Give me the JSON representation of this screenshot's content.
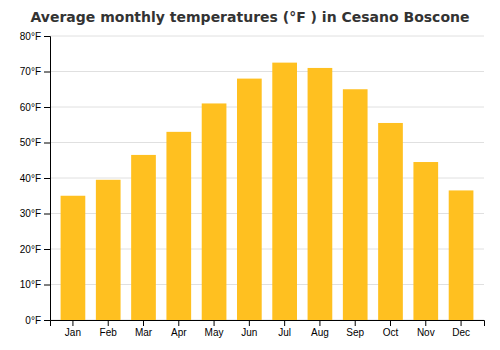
{
  "chart_data": {
    "type": "bar",
    "title": "Average monthly temperatures (°F ) in Cesano Boscone",
    "categories": [
      "Jan",
      "Feb",
      "Mar",
      "Apr",
      "May",
      "Jun",
      "Jul",
      "Aug",
      "Sep",
      "Oct",
      "Nov",
      "Dec"
    ],
    "values": [
      35,
      39.5,
      46.5,
      53,
      61,
      68,
      72.5,
      71,
      65,
      55.5,
      44.5,
      36.5
    ],
    "color": "#FFC020",
    "ylim": [
      0,
      80
    ],
    "yticks": [
      {
        "value": 0,
        "label": "0°F"
      },
      {
        "value": 10,
        "label": "10°F"
      },
      {
        "value": 20,
        "label": "20°F"
      },
      {
        "value": 30,
        "label": "30°F"
      },
      {
        "value": 40,
        "label": "40°F"
      },
      {
        "value": 50,
        "label": "50°F"
      },
      {
        "value": 60,
        "label": "60°F"
      },
      {
        "value": 70,
        "label": "70°F"
      },
      {
        "value": 80,
        "label": "80°F"
      }
    ],
    "grid": true
  }
}
